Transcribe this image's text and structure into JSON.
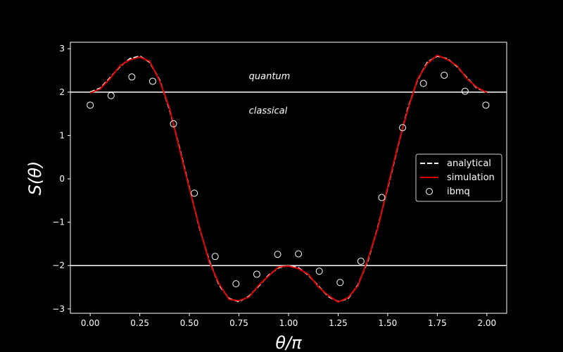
{
  "chart_data": {
    "type": "line",
    "xlabel": "θ/π",
    "ylabel": "S(θ)",
    "xlim": [
      -0.1,
      2.1
    ],
    "ylim": [
      -3.1,
      3.15
    ],
    "xticks": [
      0.0,
      0.25,
      0.5,
      0.75,
      1.0,
      1.25,
      1.5,
      1.75,
      2.0
    ],
    "xtick_labels": [
      "0.00",
      "0.25",
      "0.50",
      "0.75",
      "1.00",
      "1.25",
      "1.50",
      "1.75",
      "2.00"
    ],
    "yticks": [
      -3,
      -2,
      -1,
      0,
      1,
      2,
      3
    ],
    "ytick_labels": [
      "−3",
      "−2",
      "−1",
      "0",
      "1",
      "2",
      "3"
    ],
    "hlines": [
      2,
      -2
    ],
    "annotations": [
      {
        "text": "quantum",
        "x": 0.8,
        "y": 2.3
      },
      {
        "text": "classical",
        "x": 0.8,
        "y": 1.5
      }
    ],
    "legend": {
      "position": "right",
      "entries": [
        {
          "label": "analytical",
          "style": "dashed-line",
          "color": "#ffffff"
        },
        {
          "label": "simulation",
          "style": "line",
          "color": "#dd0000"
        },
        {
          "label": "ibmq",
          "style": "open-circle",
          "color": "#ffffff"
        }
      ]
    },
    "series": [
      {
        "name": "analytical",
        "style": "dashed-line",
        "color": "#ffffff",
        "x": [
          0.0,
          0.05,
          0.1,
          0.15,
          0.2,
          0.25,
          0.3,
          0.35,
          0.4,
          0.45,
          0.5,
          0.55,
          0.6,
          0.65,
          0.7,
          0.75,
          0.8,
          0.85,
          0.9,
          0.95,
          1.0,
          1.05,
          1.1,
          1.15,
          1.2,
          1.25,
          1.3,
          1.35,
          1.4,
          1.45,
          1.5,
          1.55,
          1.6,
          1.65,
          1.7,
          1.75,
          1.8,
          1.85,
          1.9,
          1.95,
          2.0
        ],
        "y": [
          2.0,
          2.09,
          2.33,
          2.59,
          2.77,
          2.83,
          2.69,
          2.28,
          1.6,
          0.72,
          -0.21,
          -1.12,
          -1.89,
          -2.45,
          -2.76,
          -2.83,
          -2.71,
          -2.47,
          -2.22,
          -2.05,
          -2.0,
          -2.05,
          -2.22,
          -2.47,
          -2.71,
          -2.83,
          -2.76,
          -2.45,
          -1.89,
          -1.12,
          -0.21,
          0.72,
          1.6,
          2.28,
          2.69,
          2.83,
          2.77,
          2.59,
          2.33,
          2.09,
          2.0
        ]
      },
      {
        "name": "simulation",
        "style": "line",
        "color": "#dd0000",
        "x": [
          0.0,
          0.05,
          0.1,
          0.15,
          0.2,
          0.25,
          0.3,
          0.35,
          0.4,
          0.45,
          0.5,
          0.55,
          0.6,
          0.65,
          0.7,
          0.75,
          0.8,
          0.85,
          0.9,
          0.95,
          1.0,
          1.05,
          1.1,
          1.15,
          1.2,
          1.25,
          1.3,
          1.35,
          1.4,
          1.45,
          1.5,
          1.55,
          1.6,
          1.65,
          1.7,
          1.75,
          1.8,
          1.85,
          1.9,
          1.95,
          2.0
        ],
        "y": [
          1.98,
          2.07,
          2.31,
          2.61,
          2.74,
          2.81,
          2.71,
          2.26,
          1.63,
          0.69,
          -0.23,
          -1.1,
          -1.92,
          -2.42,
          -2.78,
          -2.81,
          -2.73,
          -2.45,
          -2.24,
          -2.03,
          -2.01,
          -2.07,
          -2.2,
          -2.49,
          -2.69,
          -2.84,
          -2.74,
          -2.47,
          -1.86,
          -1.14,
          -0.19,
          0.74,
          1.57,
          2.3,
          2.66,
          2.85,
          2.75,
          2.61,
          2.31,
          2.11,
          1.99
        ]
      },
      {
        "name": "ibmq",
        "style": "open-circle",
        "color": "#ffffff",
        "x": [
          0.0,
          0.105,
          0.21,
          0.315,
          0.42,
          0.525,
          0.63,
          0.735,
          0.84,
          0.945,
          1.05,
          1.155,
          1.26,
          1.365,
          1.47,
          1.575,
          1.68,
          1.785,
          1.89,
          1.995
        ],
        "y": [
          1.7,
          1.92,
          2.35,
          2.25,
          1.27,
          -0.33,
          -1.79,
          -2.42,
          -2.2,
          -1.74,
          -1.73,
          -2.13,
          -2.39,
          -1.9,
          -0.43,
          1.18,
          2.2,
          2.39,
          2.02,
          1.7
        ]
      }
    ]
  }
}
